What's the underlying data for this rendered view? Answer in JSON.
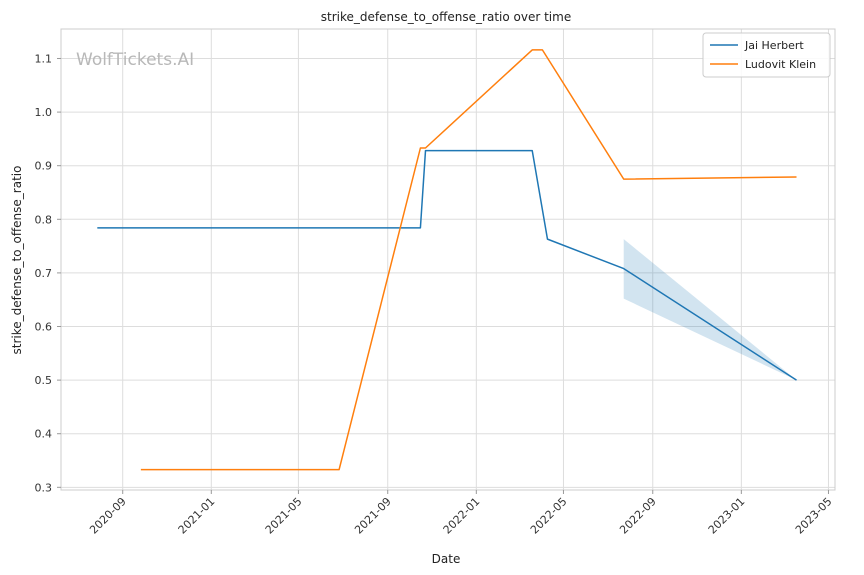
{
  "chart_data": {
    "type": "line",
    "title": "strike_defense_to_offense_ratio over time",
    "xlabel": "Date",
    "ylabel": "strike_defense_to_offense_ratio",
    "watermark": "WolfTickets.AI",
    "x_axis_type": "date",
    "xlim": [
      "2020-06-08",
      "2023-05-10"
    ],
    "ylim": [
      0.295,
      1.155
    ],
    "x_ticks": [
      {
        "date": "2020-09-01",
        "label": "2020-09"
      },
      {
        "date": "2021-01-01",
        "label": "2021-01"
      },
      {
        "date": "2021-05-01",
        "label": "2021-05"
      },
      {
        "date": "2021-09-01",
        "label": "2021-09"
      },
      {
        "date": "2022-01-01",
        "label": "2022-01"
      },
      {
        "date": "2022-05-01",
        "label": "2022-05"
      },
      {
        "date": "2022-09-01",
        "label": "2022-09"
      },
      {
        "date": "2023-01-01",
        "label": "2023-01"
      },
      {
        "date": "2023-05-01",
        "label": "2023-05"
      }
    ],
    "y_ticks": [
      0.3,
      0.4,
      0.5,
      0.6,
      0.7,
      0.8,
      0.9,
      1.0,
      1.1
    ],
    "y_tick_labels": [
      "0.3",
      "0.4",
      "0.5",
      "0.6",
      "0.7",
      "0.8",
      "0.9",
      "1.0",
      "1.1"
    ],
    "grid": true,
    "legend_position": "top-right",
    "series": [
      {
        "name": "Jai Herbert",
        "color": "#1f77b4",
        "points": [
          {
            "x": "2020-07-28",
            "y": 0.784
          },
          {
            "x": "2021-10-16",
            "y": 0.784
          },
          {
            "x": "2021-10-23",
            "y": 0.928
          },
          {
            "x": "2022-03-19",
            "y": 0.928
          },
          {
            "x": "2022-04-09",
            "y": 0.763
          },
          {
            "x": "2022-07-23",
            "y": 0.708
          },
          {
            "x": "2023-03-18",
            "y": 0.5
          }
        ],
        "confidence_band": [
          {
            "x": "2022-07-23",
            "low": 0.652,
            "high": 0.763
          },
          {
            "x": "2023-03-18",
            "low": 0.5,
            "high": 0.5
          }
        ]
      },
      {
        "name": "Ludovit Klein",
        "color": "#ff7f0e",
        "points": [
          {
            "x": "2020-09-26",
            "y": 0.333
          },
          {
            "x": "2021-06-26",
            "y": 0.333
          },
          {
            "x": "2021-10-16",
            "y": 0.933
          },
          {
            "x": "2021-10-23",
            "y": 0.933
          },
          {
            "x": "2022-03-19",
            "y": 1.116
          },
          {
            "x": "2022-04-02",
            "y": 1.116
          },
          {
            "x": "2022-07-23",
            "y": 0.875
          },
          {
            "x": "2023-03-18",
            "y": 0.879
          }
        ]
      }
    ]
  }
}
